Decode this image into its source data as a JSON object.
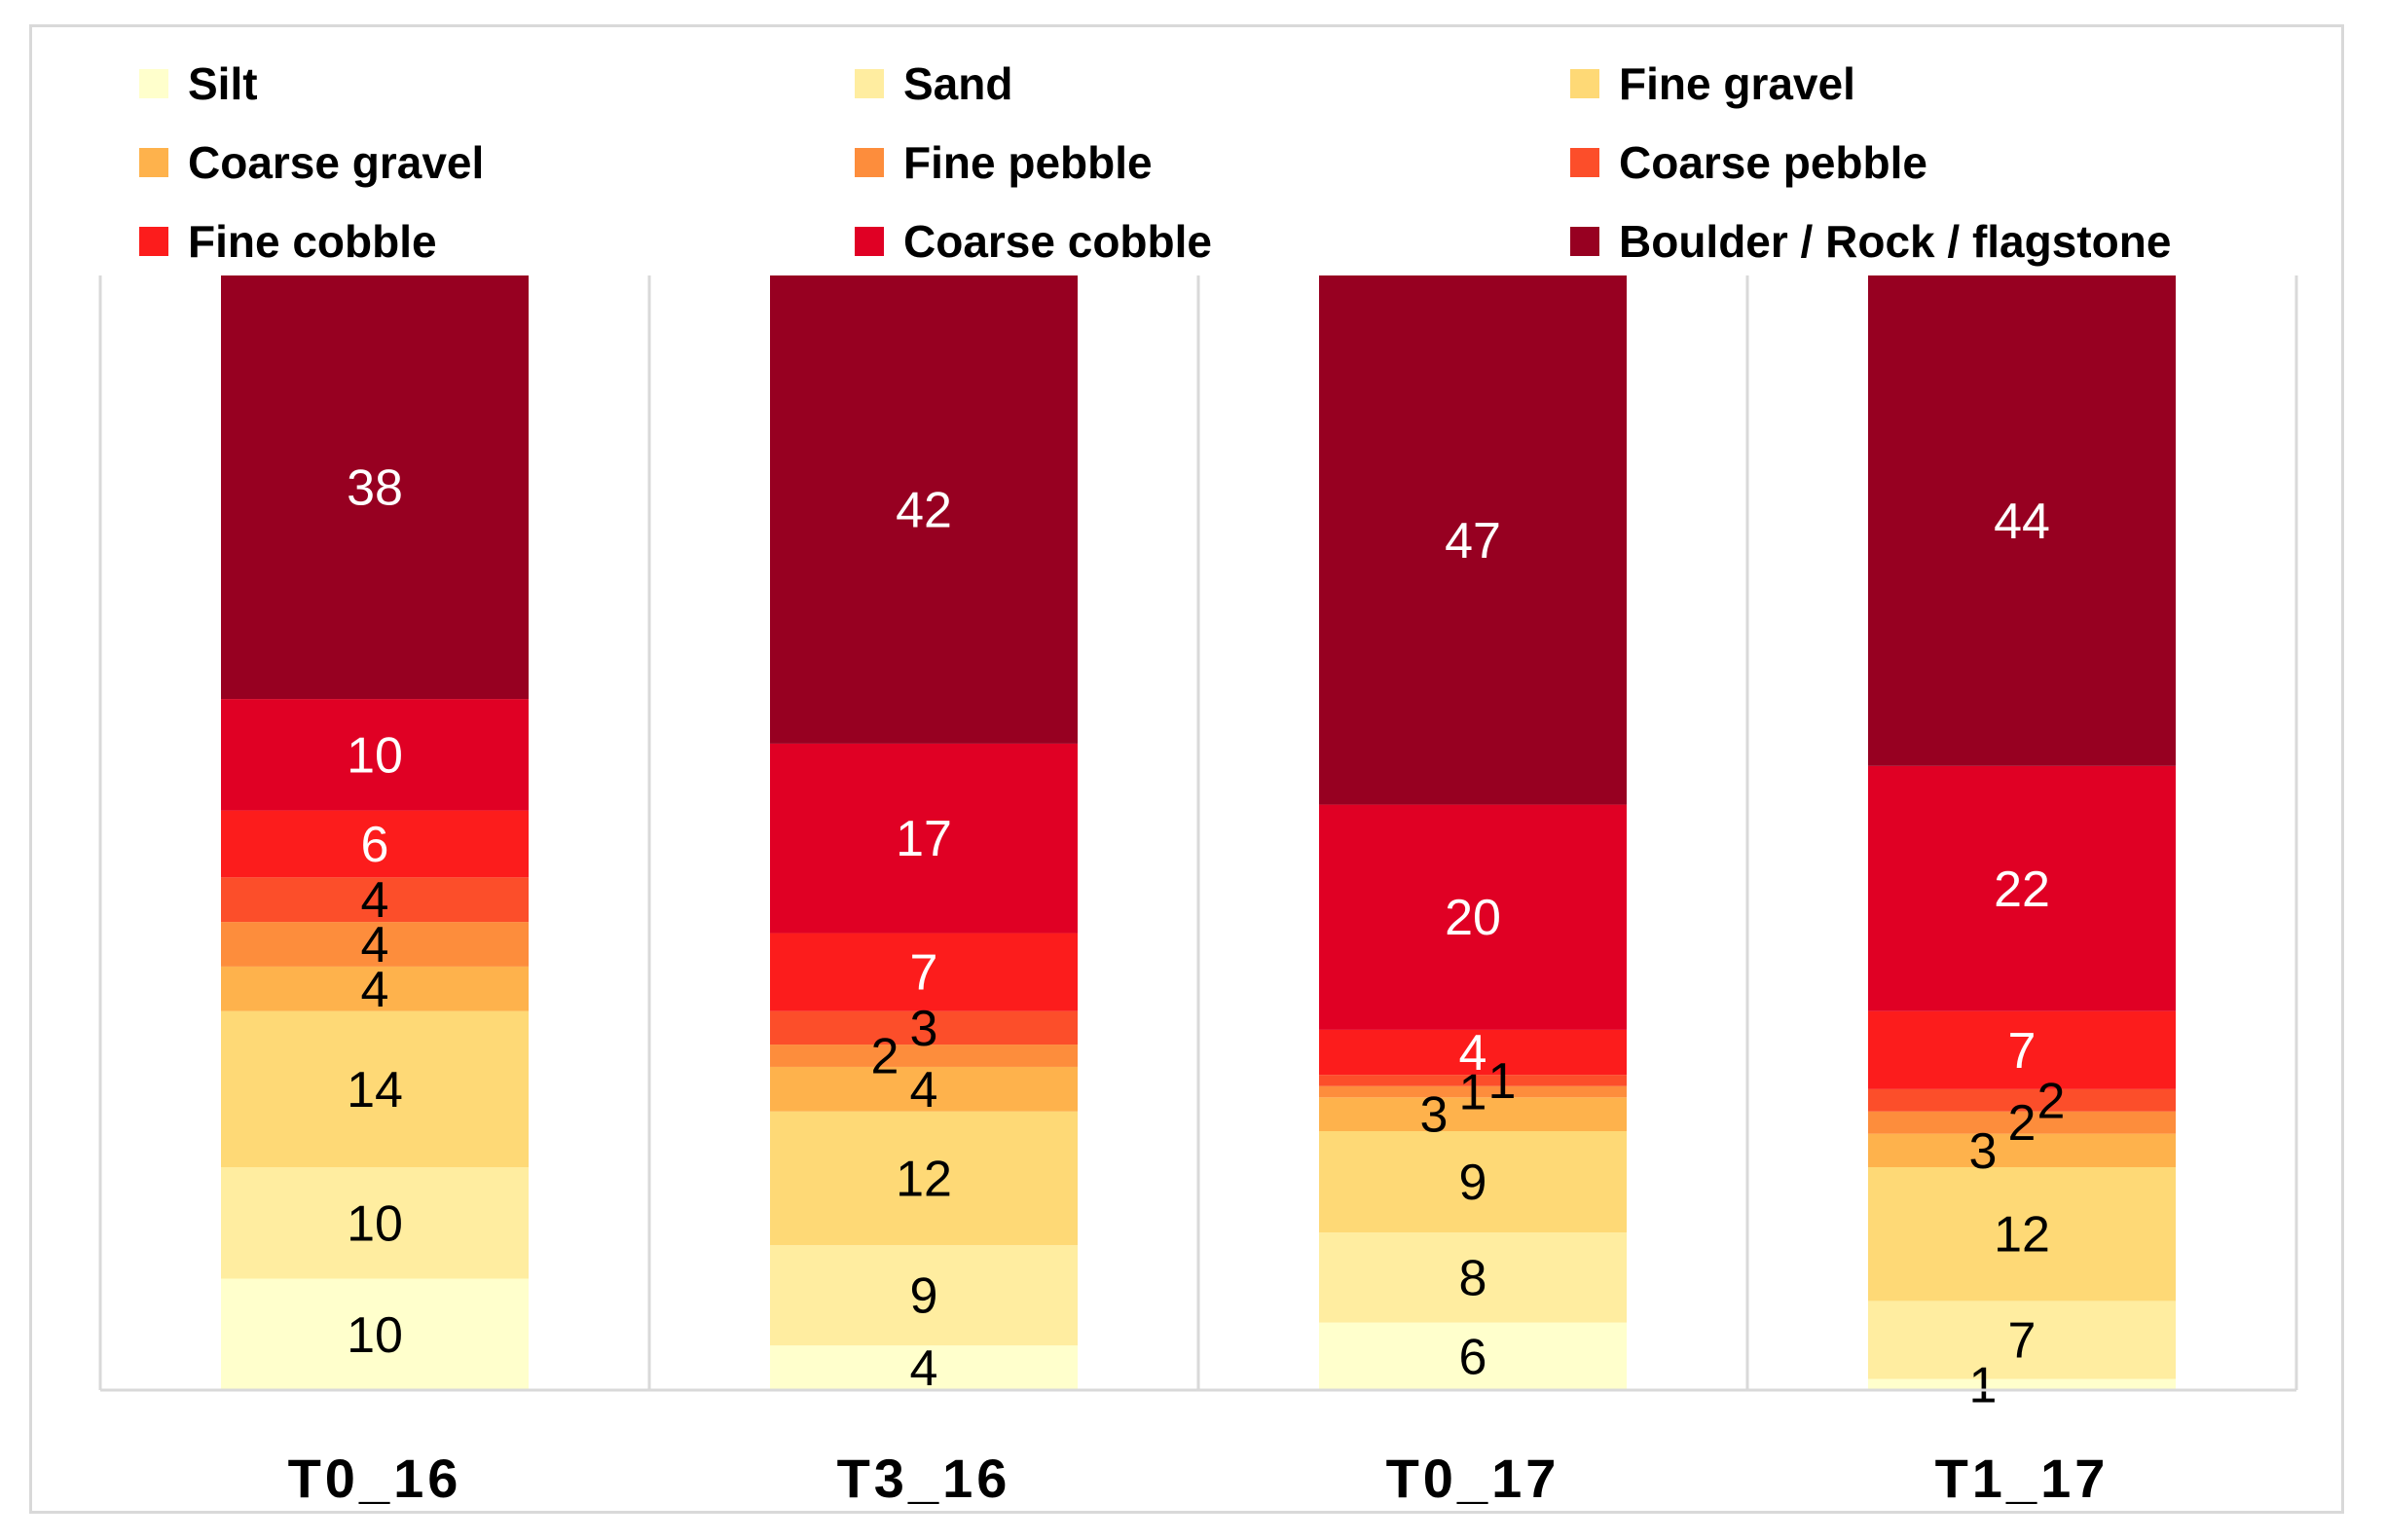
{
  "chart_data": {
    "type": "bar",
    "stacked": true,
    "normalized_percent": true,
    "categories": [
      "T0_16",
      "T3_16",
      "T0_17",
      "T1_17"
    ],
    "series": [
      {
        "name": "Silt",
        "color": "#ffffcc",
        "values": [
          10,
          4,
          6,
          1
        ],
        "labels": [
          "10",
          "4",
          "6",
          "1"
        ]
      },
      {
        "name": "Sand",
        "color": "#ffeda0",
        "values": [
          10,
          9,
          8,
          7
        ],
        "labels": [
          "10",
          "9",
          "8",
          "7"
        ]
      },
      {
        "name": "Fine gravel",
        "color": "#fed976",
        "values": [
          14,
          12,
          9,
          12
        ],
        "labels": [
          "14",
          "12",
          "9",
          "12"
        ]
      },
      {
        "name": "Coarse gravel",
        "color": "#feb24c",
        "values": [
          4,
          4,
          3,
          3
        ],
        "labels": [
          "4",
          "4",
          "3",
          "3"
        ]
      },
      {
        "name": "Fine pebble",
        "color": "#fd8d3c",
        "values": [
          4,
          2,
          1,
          2
        ],
        "labels": [
          "4",
          "2",
          "1",
          "2"
        ]
      },
      {
        "name": "Coarse pebble",
        "color": "#fc4e2a",
        "values": [
          4,
          3,
          1,
          2
        ],
        "labels": [
          "4",
          "3",
          "1",
          "2"
        ]
      },
      {
        "name": "Fine cobble",
        "color": "#fc1c1c",
        "values": [
          6,
          7,
          4,
          7
        ],
        "labels": [
          "6",
          "7",
          "4",
          "7"
        ]
      },
      {
        "name": "Coarse cobble",
        "color": "#e00024",
        "values": [
          10,
          17,
          20,
          22
        ],
        "labels": [
          "10",
          "17",
          "20",
          "22"
        ]
      },
      {
        "name": "Boulder / Rock / flagstone",
        "color": "#970021",
        "values": [
          38,
          42,
          47,
          44
        ],
        "labels": [
          "38",
          "42",
          "47",
          "44"
        ]
      }
    ],
    "title": "",
    "xlabel": "",
    "ylabel": "",
    "ylim": [
      0,
      100
    ],
    "grid": false,
    "legend_position": "top"
  }
}
